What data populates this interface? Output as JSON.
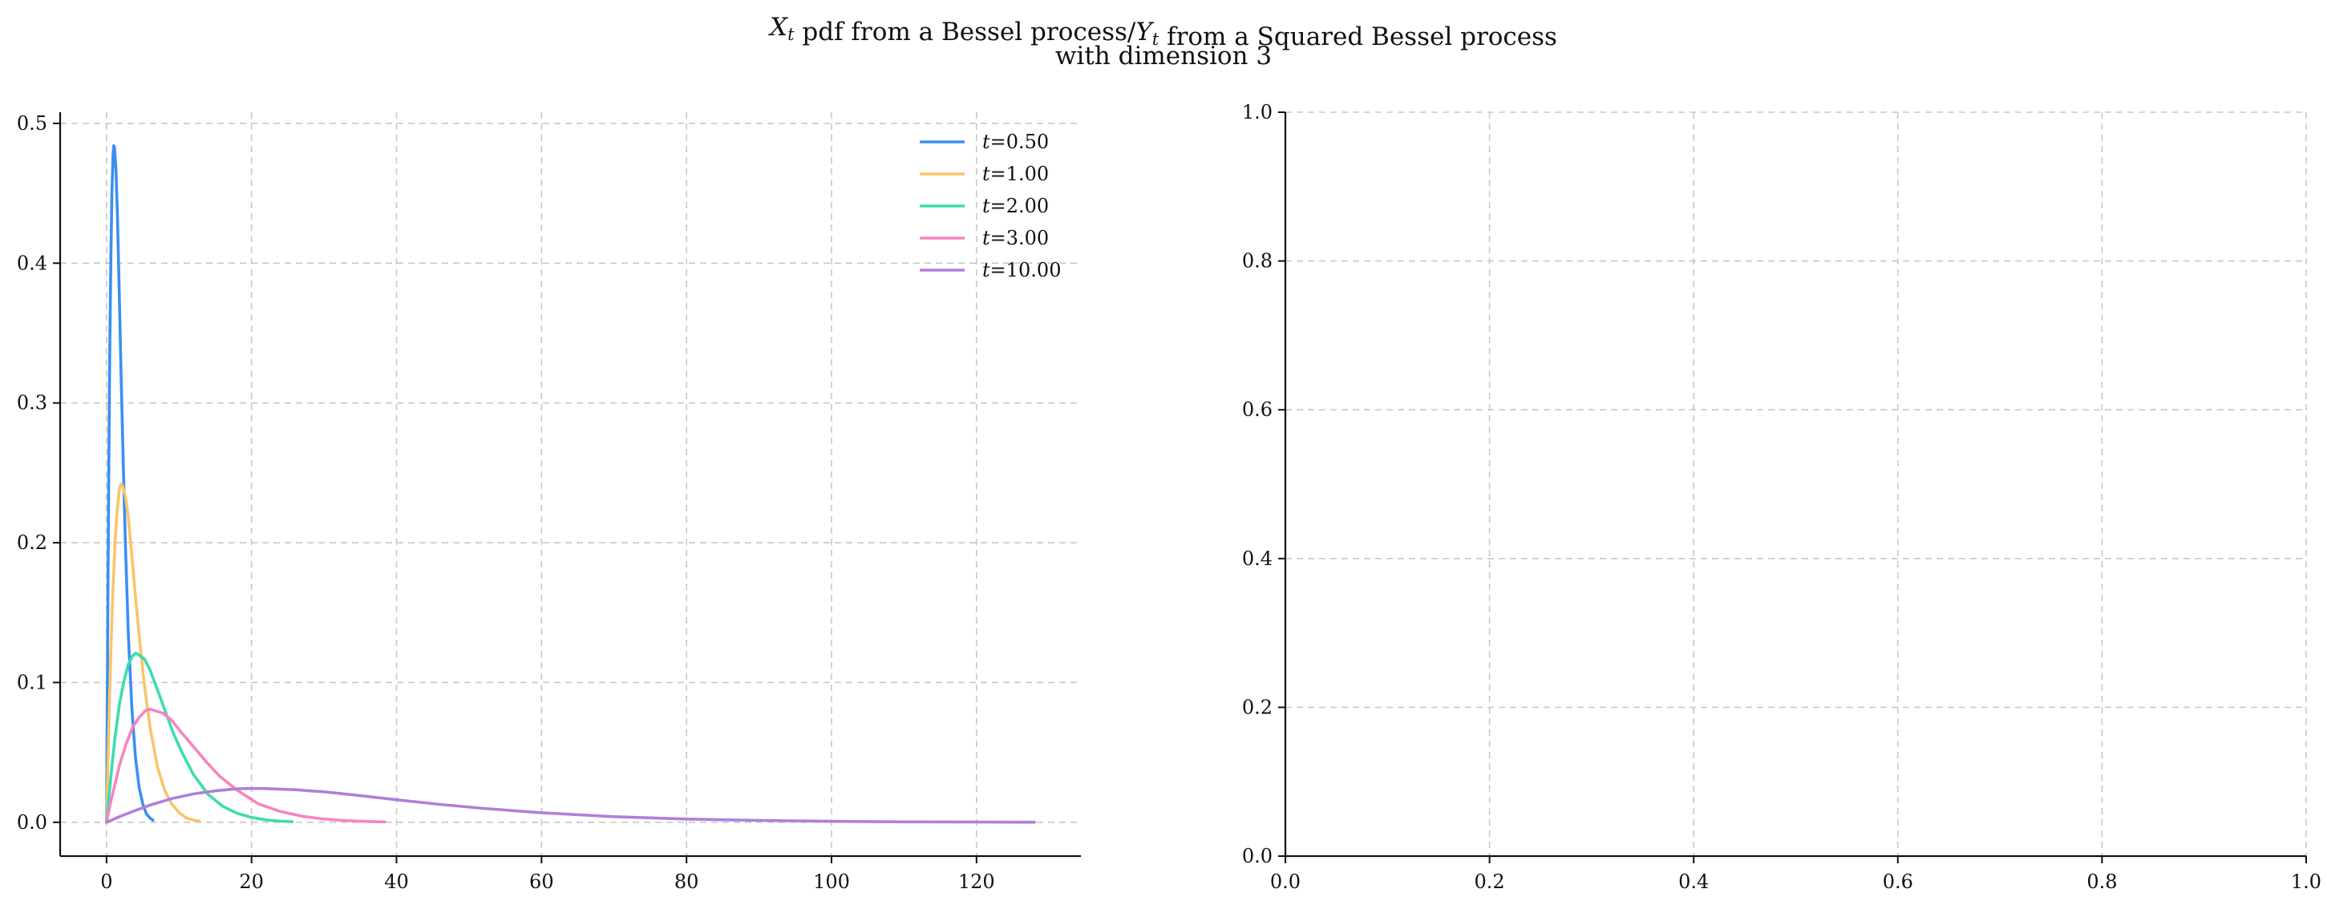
{
  "figure": {
    "title_line1": "X_t pdf from a Bessel process/Y_t from a Squared Bessel process",
    "title_line2": "with dimension 3"
  },
  "chart_data": [
    {
      "type": "line",
      "title": "",
      "xlabel": "",
      "ylabel": "",
      "xlim": [
        -6.4,
        134.4
      ],
      "ylim": [
        -0.0242,
        0.508
      ],
      "xticks": [
        0,
        20,
        40,
        60,
        80,
        100,
        120
      ],
      "xtick_labels": [
        "0",
        "20",
        "40",
        "60",
        "80",
        "100",
        "120"
      ],
      "yticks": [
        0.0,
        0.1,
        0.2,
        0.3,
        0.4,
        0.5
      ],
      "ytick_labels": [
        "0.0",
        "0.1",
        "0.2",
        "0.3",
        "0.4",
        "0.5"
      ],
      "grid": true,
      "legend_position": "top-right",
      "series": [
        {
          "name": "t=0.50",
          "color": "#3b8ff0",
          "x": [
            0,
            0.1,
            0.2,
            0.3,
            0.45,
            0.6,
            0.75,
            0.9,
            1.0,
            1.1,
            1.3,
            1.5,
            1.7,
            2.0,
            2.3,
            2.6,
            3.0,
            3.5,
            4.0,
            4.5,
            5.0,
            5.5,
            6.0,
            6.4
          ],
          "y": [
            0,
            0.088,
            0.171,
            0.246,
            0.338,
            0.405,
            0.451,
            0.478,
            0.484,
            0.483,
            0.467,
            0.435,
            0.392,
            0.323,
            0.257,
            0.199,
            0.135,
            0.081,
            0.046,
            0.025,
            0.013,
            0.006,
            0.003,
            0.0015
          ]
        },
        {
          "name": "t=1.00",
          "color": "#f9c46b",
          "x": [
            0,
            0.2,
            0.4,
            0.6,
            0.9,
            1.2,
            1.5,
            1.8,
            2.0,
            2.2,
            2.6,
            3.0,
            3.4,
            4.0,
            4.6,
            5.2,
            6.0,
            7.0,
            8.0,
            9.0,
            10.0,
            11.0,
            12.0,
            12.8
          ],
          "y": [
            0,
            0.044,
            0.085,
            0.123,
            0.169,
            0.203,
            0.225,
            0.239,
            0.242,
            0.241,
            0.233,
            0.218,
            0.196,
            0.161,
            0.128,
            0.099,
            0.068,
            0.04,
            0.023,
            0.013,
            0.007,
            0.003,
            0.0015,
            0.0008
          ]
        },
        {
          "name": "t=2.00",
          "color": "#3fdbb0",
          "x": [
            0,
            0.4,
            0.8,
            1.2,
            1.8,
            2.4,
            3.0,
            3.6,
            4.0,
            4.4,
            5.2,
            6.0,
            6.8,
            8.0,
            9.2,
            10.4,
            12.0,
            14.0,
            16.0,
            18.0,
            20.0,
            22.0,
            24.0,
            25.6
          ],
          "y": [
            0,
            0.022,
            0.043,
            0.062,
            0.085,
            0.101,
            0.113,
            0.119,
            0.121,
            0.12,
            0.117,
            0.109,
            0.098,
            0.081,
            0.064,
            0.05,
            0.034,
            0.02,
            0.0115,
            0.0064,
            0.0035,
            0.0017,
            0.0008,
            0.0004
          ]
        },
        {
          "name": "t=3.00",
          "color": "#f585c3",
          "x": [
            0,
            0.6,
            1.2,
            1.8,
            2.7,
            3.6,
            4.5,
            5.4,
            6.0,
            6.6,
            7.8,
            9.0,
            10.2,
            12.0,
            13.8,
            15.6,
            18.0,
            21.0,
            24.0,
            27.0,
            30.0,
            33.0,
            36.0,
            38.4
          ],
          "y": [
            0,
            0.015,
            0.028,
            0.041,
            0.056,
            0.068,
            0.075,
            0.08,
            0.081,
            0.08,
            0.078,
            0.073,
            0.065,
            0.054,
            0.043,
            0.033,
            0.023,
            0.013,
            0.0077,
            0.0043,
            0.0023,
            0.0012,
            0.0006,
            0.0003
          ]
        },
        {
          "name": "t=10.00",
          "color": "#b27ed9",
          "x": [
            0,
            2,
            4,
            6,
            9,
            12,
            15,
            18,
            20,
            22,
            26,
            30,
            34,
            40,
            46,
            52,
            60,
            70,
            80,
            90,
            100,
            110,
            120,
            128
          ],
          "y": [
            0,
            0.0045,
            0.0085,
            0.0123,
            0.0169,
            0.0203,
            0.0225,
            0.0239,
            0.0242,
            0.0241,
            0.0233,
            0.0218,
            0.0196,
            0.0161,
            0.0128,
            0.0099,
            0.0068,
            0.004,
            0.0023,
            0.0013,
            0.0007,
            0.0003,
            0.00015,
            8e-05
          ]
        }
      ]
    },
    {
      "type": "line",
      "title": "",
      "xlabel": "",
      "ylabel": "",
      "xlim": [
        0.0,
        1.0
      ],
      "ylim": [
        0.0,
        1.0
      ],
      "xticks": [
        0.0,
        0.2,
        0.4,
        0.6,
        0.8,
        1.0
      ],
      "xtick_labels": [
        "0.0",
        "0.2",
        "0.4",
        "0.6",
        "0.8",
        "1.0"
      ],
      "yticks": [
        0.0,
        0.2,
        0.4,
        0.6,
        0.8,
        1.0
      ],
      "ytick_labels": [
        "0.0",
        "0.2",
        "0.4",
        "0.6",
        "0.8",
        "1.0"
      ],
      "grid": true,
      "series": []
    }
  ]
}
